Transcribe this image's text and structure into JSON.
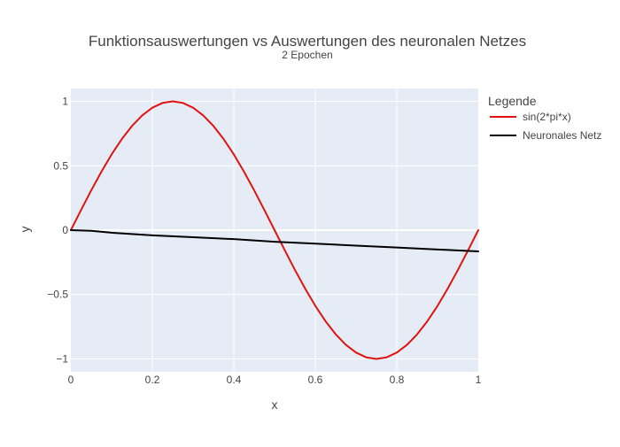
{
  "chart_data": {
    "type": "line",
    "title": "Funktionsauswertungen vs Auswertungen des neuronalen Netzes",
    "subtitle": "2 Epochen",
    "xlabel": "x",
    "ylabel": "y",
    "xlim": [
      0,
      1
    ],
    "ylim": [
      -1.1,
      1.1
    ],
    "xticks": [
      0,
      0.2,
      0.4,
      0.6,
      0.8,
      1
    ],
    "xtick_labels": [
      "0",
      "0.2",
      "0.4",
      "0.6",
      "0.8",
      "1"
    ],
    "yticks": [
      -1,
      -0.5,
      0,
      0.5,
      1
    ],
    "ytick_labels": [
      "−1",
      "−0.5",
      "0",
      "0.5",
      "1"
    ],
    "grid": true,
    "legend": {
      "title": "Legende",
      "placement": "right"
    },
    "series": [
      {
        "name": "sin(2*pi*x)",
        "color": "#e0140f",
        "x": [
          0,
          0.025,
          0.05,
          0.075,
          0.1,
          0.125,
          0.15,
          0.175,
          0.2,
          0.225,
          0.25,
          0.275,
          0.3,
          0.325,
          0.35,
          0.375,
          0.4,
          0.425,
          0.45,
          0.475,
          0.5,
          0.525,
          0.55,
          0.575,
          0.6,
          0.625,
          0.65,
          0.675,
          0.7,
          0.725,
          0.75,
          0.775,
          0.8,
          0.825,
          0.85,
          0.875,
          0.9,
          0.925,
          0.95,
          0.975,
          1
        ],
        "y": [
          0,
          0.156,
          0.309,
          0.454,
          0.588,
          0.707,
          0.809,
          0.891,
          0.951,
          0.988,
          1,
          0.988,
          0.951,
          0.891,
          0.809,
          0.707,
          0.588,
          0.454,
          0.309,
          0.156,
          0,
          -0.156,
          -0.309,
          -0.454,
          -0.588,
          -0.707,
          -0.809,
          -0.891,
          -0.951,
          -0.988,
          -1,
          -0.988,
          -0.951,
          -0.891,
          -0.809,
          -0.707,
          -0.588,
          -0.454,
          -0.309,
          -0.156,
          0
        ]
      },
      {
        "name": "Neuronales Netz",
        "color": "#000000",
        "x": [
          0,
          0.05,
          0.1,
          0.2,
          0.3,
          0.4,
          0.5,
          0.6,
          0.7,
          0.8,
          0.9,
          1
        ],
        "y": [
          0,
          -0.005,
          -0.02,
          -0.04,
          -0.055,
          -0.07,
          -0.09,
          -0.105,
          -0.12,
          -0.135,
          -0.15,
          -0.165
        ]
      }
    ]
  }
}
